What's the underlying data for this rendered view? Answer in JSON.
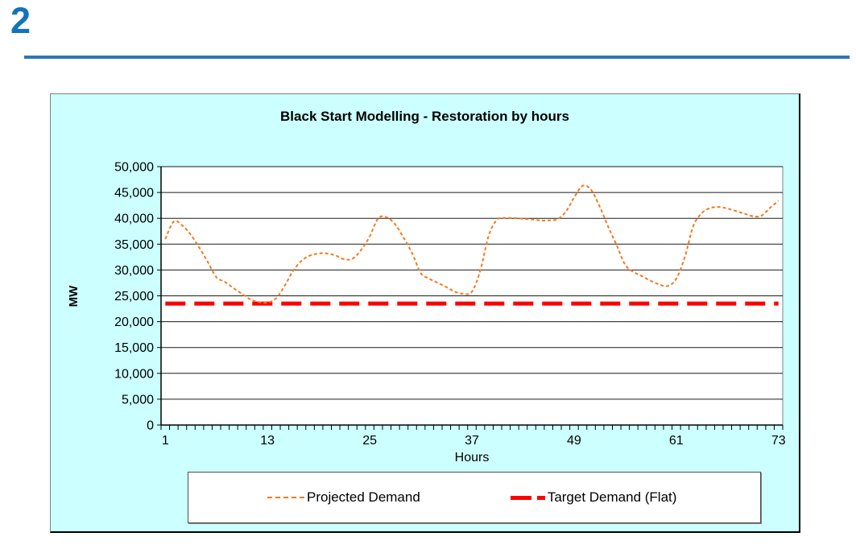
{
  "page": {
    "slide_number": "2"
  },
  "colors": {
    "slide_number_blue": "#1273BD",
    "divider_blue": "#2E75B6",
    "chart_background": "#CCFFFF",
    "plot_background": "#FFFFFF",
    "gridline": "#1a1a1a",
    "plot_border": "#808080",
    "projected_demand": "#F47920",
    "target_demand": "#FF0000",
    "text": "#000000"
  },
  "chart": {
    "title": "Black Start Modelling - Restoration by hours",
    "x_axis_title": "Hours",
    "y_axis_title": "MW",
    "legend": {
      "projected_label": "Projected Demand",
      "target_label": "Target Demand (Flat)"
    }
  },
  "chart_data": {
    "type": "line",
    "title": "Black Start Modelling - Restoration by hours",
    "xlabel": "Hours",
    "ylabel": "MW",
    "xlim": [
      1,
      73
    ],
    "ylim": [
      0,
      50000
    ],
    "ytick_step": 5000,
    "y_tick_labels": [
      "0",
      "5,000",
      "10,000",
      "15,000",
      "20,000",
      "25,000",
      "30,000",
      "35,000",
      "40,000",
      "45,000",
      "50,000"
    ],
    "x_tick_labels": [
      "1",
      "13",
      "25",
      "37",
      "49",
      "61",
      "73"
    ],
    "xticks": [
      1,
      13,
      25,
      37,
      49,
      61,
      73
    ],
    "grid": "horizontal",
    "legend_position": "bottom",
    "series": [
      {
        "name": "Projected Demand",
        "color": "#F47920",
        "style": "dashed-thin",
        "x_start": 1,
        "values": [
          36000,
          39400,
          38600,
          36800,
          34300,
          31500,
          28600,
          27700,
          26500,
          25400,
          24300,
          23800,
          23700,
          24500,
          26900,
          29800,
          31800,
          32800,
          33200,
          33200,
          32800,
          32100,
          32200,
          33900,
          36500,
          40000,
          40200,
          38800,
          36200,
          33200,
          29400,
          28300,
          27500,
          26700,
          25800,
          25400,
          25800,
          30000,
          36800,
          39800,
          40050,
          40050,
          39900,
          39800,
          39600,
          39600,
          39800,
          41200,
          44000,
          46300,
          45500,
          42300,
          38400,
          34800,
          31000,
          29600,
          28800,
          27900,
          27200,
          26900,
          28300,
          32500,
          38500,
          41000,
          42000,
          42200,
          41900,
          41400,
          40900,
          40400,
          40500,
          42000,
          43400
        ]
      },
      {
        "name": "Target Demand (Flat)",
        "color": "#FF0000",
        "style": "dashed-thick",
        "flat_value": 23500
      }
    ]
  }
}
